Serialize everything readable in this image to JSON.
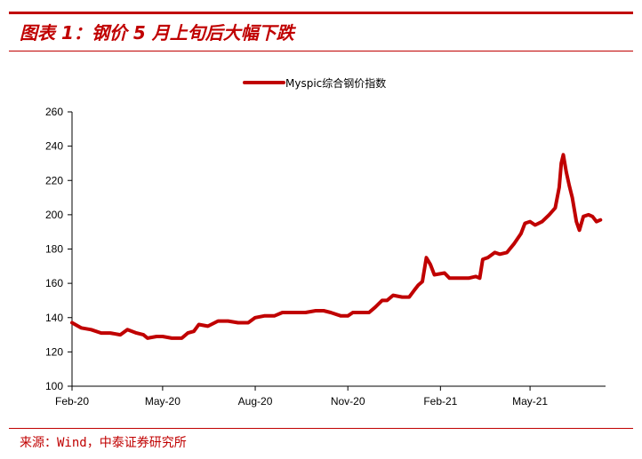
{
  "header": {
    "figure_title": "图表 1：钢价 5 月上旬后大幅下跌"
  },
  "footer": {
    "source": "来源：Wind，中泰证券研究所"
  },
  "colors": {
    "accent": "#c00000",
    "series": "#c00000"
  },
  "chart_data": {
    "type": "line",
    "title": "",
    "xlabel": "",
    "ylabel": "",
    "legend": "top-center",
    "grid": false,
    "ylim": [
      100,
      260
    ],
    "yticks": [
      "100",
      "120",
      "140",
      "160",
      "180",
      "200",
      "220",
      "240",
      "260"
    ],
    "xlim": [
      "2020-02-01",
      "2021-07-15"
    ],
    "xticks": [
      {
        "label": "Feb-20",
        "date": "2020-02-01"
      },
      {
        "label": "May-20",
        "date": "2020-05-01"
      },
      {
        "label": "Aug-20",
        "date": "2020-08-01"
      },
      {
        "label": "Nov-20",
        "date": "2020-11-01"
      },
      {
        "label": "Feb-21",
        "date": "2021-02-01"
      },
      {
        "label": "May-21",
        "date": "2021-05-01"
      }
    ],
    "series": [
      {
        "name": "Myspic综合钢价指数",
        "points": [
          [
            "2020-02-01",
            137
          ],
          [
            "2020-02-10",
            134
          ],
          [
            "2020-02-20",
            133
          ],
          [
            "2020-03-01",
            131
          ],
          [
            "2020-03-10",
            131
          ],
          [
            "2020-03-20",
            130
          ],
          [
            "2020-03-27",
            133
          ],
          [
            "2020-04-05",
            131
          ],
          [
            "2020-04-12",
            130
          ],
          [
            "2020-04-16",
            128
          ],
          [
            "2020-04-25",
            129
          ],
          [
            "2020-05-01",
            129
          ],
          [
            "2020-05-10",
            128
          ],
          [
            "2020-05-20",
            128
          ],
          [
            "2020-05-26",
            131
          ],
          [
            "2020-06-01",
            132
          ],
          [
            "2020-06-06",
            136
          ],
          [
            "2020-06-15",
            135
          ],
          [
            "2020-06-25",
            138
          ],
          [
            "2020-07-05",
            138
          ],
          [
            "2020-07-15",
            137
          ],
          [
            "2020-07-25",
            137
          ],
          [
            "2020-08-01",
            140
          ],
          [
            "2020-08-10",
            141
          ],
          [
            "2020-08-20",
            141
          ],
          [
            "2020-08-28",
            143
          ],
          [
            "2020-09-10",
            143
          ],
          [
            "2020-09-20",
            143
          ],
          [
            "2020-09-30",
            144
          ],
          [
            "2020-10-08",
            144
          ],
          [
            "2020-10-15",
            143
          ],
          [
            "2020-10-25",
            141
          ],
          [
            "2020-11-01",
            141
          ],
          [
            "2020-11-06",
            143
          ],
          [
            "2020-11-15",
            143
          ],
          [
            "2020-11-22",
            143
          ],
          [
            "2020-11-28",
            146
          ],
          [
            "2020-12-05",
            150
          ],
          [
            "2020-12-10",
            150
          ],
          [
            "2020-12-16",
            153
          ],
          [
            "2020-12-25",
            152
          ],
          [
            "2021-01-01",
            152
          ],
          [
            "2021-01-06",
            156
          ],
          [
            "2021-01-10",
            159
          ],
          [
            "2021-01-14",
            161
          ],
          [
            "2021-01-18",
            175
          ],
          [
            "2021-01-22",
            171
          ],
          [
            "2021-01-26",
            165
          ],
          [
            "2021-02-05",
            166
          ],
          [
            "2021-02-10",
            163
          ],
          [
            "2021-02-20",
            163
          ],
          [
            "2021-03-01",
            163
          ],
          [
            "2021-03-08",
            164
          ],
          [
            "2021-03-12",
            163
          ],
          [
            "2021-03-15",
            174
          ],
          [
            "2021-03-20",
            175
          ],
          [
            "2021-03-27",
            178
          ],
          [
            "2021-04-01",
            177
          ],
          [
            "2021-04-08",
            178
          ],
          [
            "2021-04-15",
            183
          ],
          [
            "2021-04-22",
            189
          ],
          [
            "2021-04-26",
            195
          ],
          [
            "2021-05-01",
            196
          ],
          [
            "2021-05-06",
            194
          ],
          [
            "2021-05-13",
            196
          ],
          [
            "2021-05-20",
            200
          ],
          [
            "2021-05-26",
            204
          ],
          [
            "2021-05-30",
            216
          ],
          [
            "2021-06-01",
            230
          ],
          [
            "2021-06-03",
            235
          ],
          [
            "2021-06-06",
            225
          ],
          [
            "2021-06-09",
            217
          ],
          [
            "2021-06-12",
            210
          ],
          [
            "2021-06-16",
            196
          ],
          [
            "2021-06-19",
            191
          ],
          [
            "2021-06-23",
            199
          ],
          [
            "2021-06-28",
            200
          ],
          [
            "2021-07-02",
            199
          ],
          [
            "2021-07-06",
            196
          ],
          [
            "2021-07-10",
            197
          ]
        ]
      }
    ]
  }
}
